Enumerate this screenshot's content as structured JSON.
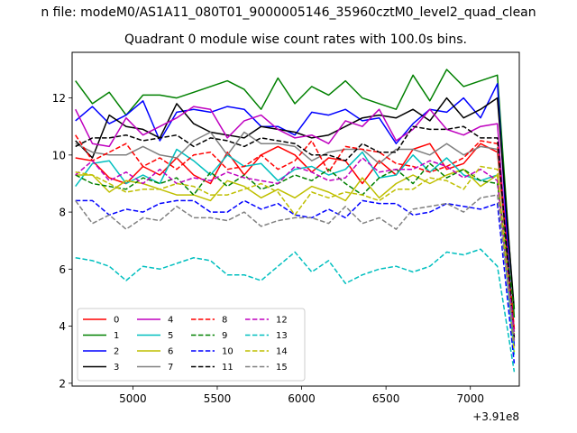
{
  "figure": {
    "suptitle": "n file: modeM0/AS1A11_080T01_9000005146_35960cztM0_level2_quad_clean",
    "title": "Quadrant 0 module wise count rates with 100.0s bins."
  },
  "chart_data": {
    "type": "line",
    "title": "Quadrant 0 module wise count rates with 100.0s bins.",
    "xlabel": "",
    "ylabel": "",
    "x_offset_label": "+3.91e8",
    "xlim": [
      4640,
      7290
    ],
    "ylim": [
      1.9,
      13.6
    ],
    "xticks": [
      5000,
      5500,
      6000,
      6500,
      7000
    ],
    "xtick_labels": [
      "5000",
      "5500",
      "6000",
      "6500",
      "7000"
    ],
    "yticks": [
      2,
      4,
      6,
      8,
      10,
      12
    ],
    "ytick_labels": [
      "2",
      "4",
      "6",
      "8",
      "10",
      "12"
    ],
    "x": [
      4660,
      4760,
      4860,
      4960,
      5060,
      5160,
      5260,
      5360,
      5460,
      5560,
      5660,
      5760,
      5860,
      5960,
      6060,
      6160,
      6260,
      6360,
      6460,
      6560,
      6660,
      6760,
      6860,
      6960,
      7060,
      7160,
      7260
    ],
    "legend_position": "lower-left",
    "legend_columns": 4,
    "series": [
      {
        "name": "0",
        "color": "#ff0000",
        "dash": "solid",
        "values": [
          9.9,
          9.8,
          9.2,
          9.0,
          9.6,
          9.3,
          9.9,
          9.3,
          9.0,
          10.1,
          9.3,
          10.0,
          10.3,
          10.0,
          9.4,
          9.9,
          9.8,
          9.0,
          9.8,
          9.3,
          10.2,
          10.4,
          9.5,
          9.7,
          10.4,
          10.1,
          3.9
        ]
      },
      {
        "name": "1",
        "color": "#008000",
        "dash": "solid",
        "values": [
          12.6,
          11.8,
          12.2,
          11.4,
          12.1,
          12.1,
          12.0,
          12.2,
          12.4,
          12.6,
          12.3,
          11.6,
          12.7,
          11.8,
          12.4,
          12.1,
          12.6,
          12.0,
          11.8,
          11.6,
          12.8,
          11.9,
          13.0,
          12.4,
          12.6,
          12.8,
          4.3
        ]
      },
      {
        "name": "2",
        "color": "#0000ff",
        "dash": "solid",
        "values": [
          11.2,
          11.7,
          11.1,
          11.4,
          11.9,
          10.5,
          11.5,
          11.6,
          11.5,
          11.7,
          11.6,
          11.0,
          11.0,
          10.7,
          11.5,
          11.4,
          11.6,
          11.2,
          11.3,
          10.4,
          11.1,
          11.6,
          11.5,
          12.0,
          11.3,
          12.5,
          3.3
        ]
      },
      {
        "name": "3",
        "color": "#000000",
        "dash": "solid",
        "values": [
          10.5,
          9.9,
          11.4,
          11.0,
          10.9,
          10.6,
          11.8,
          11.1,
          10.8,
          10.7,
          10.6,
          11.0,
          10.9,
          10.8,
          10.6,
          10.7,
          11.0,
          11.3,
          11.4,
          11.3,
          11.6,
          11.2,
          12.0,
          11.3,
          11.6,
          12.0,
          4.6
        ]
      },
      {
        "name": "4",
        "color": "#bf00bf",
        "dash": "solid",
        "values": [
          11.6,
          10.4,
          10.3,
          11.3,
          10.7,
          11.0,
          11.3,
          11.7,
          11.6,
          10.6,
          11.2,
          11.4,
          10.9,
          10.6,
          10.7,
          10.4,
          11.2,
          11.0,
          11.6,
          10.5,
          10.9,
          11.6,
          10.9,
          10.7,
          11.0,
          11.1,
          3.5
        ]
      },
      {
        "name": "5",
        "color": "#00bfbf",
        "dash": "solid",
        "values": [
          8.9,
          9.7,
          9.8,
          9.0,
          9.3,
          9.0,
          10.2,
          9.8,
          9.3,
          10.0,
          9.6,
          9.7,
          9.1,
          9.5,
          9.6,
          9.3,
          9.5,
          10.1,
          9.2,
          9.3,
          10.0,
          9.4,
          9.9,
          9.3,
          9.1,
          9.3,
          3.0
        ]
      },
      {
        "name": "6",
        "color": "#bfbf00",
        "dash": "solid",
        "values": [
          9.3,
          9.3,
          8.7,
          9.1,
          9.0,
          8.8,
          8.6,
          8.6,
          8.4,
          9.1,
          8.9,
          8.5,
          8.8,
          8.5,
          8.9,
          8.7,
          8.4,
          9.2,
          8.5,
          9.0,
          9.3,
          9.0,
          9.3,
          9.5,
          8.9,
          9.3,
          3.6
        ]
      },
      {
        "name": "7",
        "color": "#808080",
        "dash": "solid",
        "values": [
          10.4,
          10.1,
          10.0,
          10.0,
          10.3,
          10.0,
          9.9,
          10.5,
          10.8,
          10.0,
          10.8,
          10.4,
          10.4,
          10.3,
          9.8,
          10.1,
          10.2,
          10.2,
          9.7,
          10.2,
          10.2,
          10.0,
          10.4,
          10.0,
          10.3,
          10.2,
          3.8
        ]
      },
      {
        "name": "8",
        "color": "#ff0000",
        "dash": "dashed",
        "values": [
          10.7,
          9.8,
          10.1,
          10.4,
          9.6,
          9.9,
          9.5,
          10.0,
          10.1,
          9.5,
          9.6,
          10.0,
          9.5,
          9.8,
          10.5,
          9.4,
          10.3,
          10.2,
          10.1,
          9.7,
          9.6,
          9.4,
          9.6,
          9.9,
          10.5,
          10.4,
          3.9
        ]
      },
      {
        "name": "9",
        "color": "#008000",
        "dash": "dashed",
        "values": [
          9.3,
          9.0,
          8.9,
          8.8,
          9.2,
          9.0,
          9.2,
          8.6,
          9.4,
          8.9,
          9.3,
          8.8,
          9.0,
          9.3,
          9.1,
          9.5,
          9.0,
          8.6,
          9.2,
          9.5,
          9.0,
          9.7,
          9.2,
          9.5,
          9.1,
          9.0,
          4.6
        ]
      },
      {
        "name": "10",
        "color": "#0000ff",
        "dash": "dashed",
        "values": [
          8.4,
          8.4,
          7.9,
          8.1,
          8.0,
          8.3,
          8.4,
          8.4,
          8.0,
          8.0,
          8.4,
          8.1,
          8.3,
          7.9,
          7.8,
          8.1,
          7.8,
          8.4,
          8.3,
          8.3,
          7.9,
          8.0,
          8.3,
          8.2,
          8.1,
          8.3,
          2.7
        ]
      },
      {
        "name": "11",
        "color": "#000000",
        "dash": "dashed",
        "values": [
          10.3,
          10.6,
          10.6,
          10.7,
          10.5,
          10.6,
          10.7,
          10.3,
          10.6,
          10.5,
          10.3,
          10.6,
          10.5,
          10.4,
          10.0,
          10.0,
          9.8,
          10.4,
          10.1,
          10.1,
          11.0,
          10.9,
          10.9,
          11.0,
          10.6,
          10.6,
          3.6
        ]
      },
      {
        "name": "12",
        "color": "#bf00bf",
        "dash": "dashed",
        "values": [
          9.3,
          9.8,
          9.1,
          9.4,
          9.0,
          9.5,
          9.0,
          9.2,
          9.1,
          9.4,
          9.2,
          9.1,
          9.0,
          9.6,
          9.4,
          9.1,
          9.2,
          9.9,
          9.4,
          9.5,
          9.5,
          9.8,
          9.6,
          9.2,
          9.5,
          9.1,
          3.7
        ]
      },
      {
        "name": "13",
        "color": "#00bfbf",
        "dash": "dashed",
        "values": [
          6.4,
          6.3,
          6.1,
          5.6,
          6.1,
          6.0,
          6.2,
          6.4,
          6.3,
          5.8,
          5.8,
          5.6,
          6.1,
          6.6,
          5.9,
          6.3,
          5.5,
          5.8,
          6.0,
          6.1,
          5.9,
          6.1,
          6.6,
          6.5,
          6.7,
          6.1,
          2.4
        ]
      },
      {
        "name": "14",
        "color": "#bfbf00",
        "dash": "dashed",
        "values": [
          9.4,
          9.3,
          9.0,
          8.7,
          8.8,
          8.8,
          9.0,
          8.9,
          8.6,
          8.6,
          8.8,
          9.0,
          8.7,
          7.9,
          8.7,
          8.5,
          8.7,
          8.6,
          8.4,
          8.8,
          8.8,
          9.2,
          9.1,
          8.8,
          9.6,
          9.5,
          3.1
        ]
      },
      {
        "name": "15",
        "color": "#808080",
        "dash": "dashed",
        "values": [
          8.4,
          7.6,
          7.9,
          7.4,
          7.8,
          7.7,
          8.2,
          7.8,
          7.8,
          7.7,
          8.0,
          7.5,
          7.7,
          7.8,
          7.8,
          7.6,
          8.2,
          7.6,
          7.8,
          7.4,
          8.1,
          8.2,
          8.3,
          8.0,
          8.5,
          8.6,
          3.4
        ]
      }
    ]
  }
}
